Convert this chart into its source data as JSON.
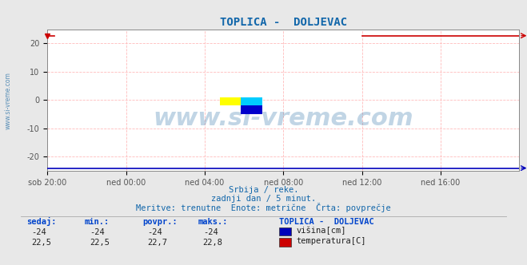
{
  "title": "TOPLICA -  DOLJEVAC",
  "title_color": "#1166aa",
  "title_fontsize": 10,
  "bg_color": "#e8e8e8",
  "plot_bg_color": "#ffffff",
  "tick_color": "#555555",
  "tick_fontsize": 7,
  "grid_color": "#ffbbbb",
  "grid_linestyle": "--",
  "grid_linewidth": 0.6,
  "xlim": [
    0,
    288
  ],
  "ylim": [
    -25,
    25
  ],
  "yticks": [
    -20,
    -10,
    0,
    10,
    20
  ],
  "xtick_labels": [
    "sob 20:00",
    "ned 00:00",
    "ned 04:00",
    "ned 08:00",
    "ned 12:00",
    "ned 16:00"
  ],
  "xtick_positions": [
    0,
    48,
    96,
    144,
    192,
    240
  ],
  "height_value": -24,
  "temp_value_start": 22.7,
  "temp_gap_end": 192,
  "height_color": "#0000bb",
  "temp_color": "#cc0000",
  "height_linewidth": 1.2,
  "temp_linewidth": 1.2,
  "watermark": "www.si-vreme.com",
  "watermark_color": "#3377aa",
  "watermark_alpha": 0.3,
  "watermark_fontsize": 22,
  "subtitle1": "Srbija / reke.",
  "subtitle2": "zadnji dan / 5 minut.",
  "subtitle3": "Meritve: trenutne  Enote: metrične  Črta: povprečje",
  "subtitle_color": "#1166aa",
  "subtitle_fontsize": 7.5,
  "table_headers": [
    "sedaj:",
    "min.:",
    "povpr.:",
    "maks.:"
  ],
  "table_header_color": "#0044cc",
  "table_header_fontsize": 7.5,
  "table_row1": [
    "-24",
    "-24",
    "-24",
    "-24"
  ],
  "table_row2": [
    "22,5",
    "22,5",
    "22,7",
    "22,8"
  ],
  "table_data_color": "#222222",
  "table_data_fontsize": 7.5,
  "legend_title": "TOPLICA -  DOLJEVAC",
  "legend_title_color": "#0044cc",
  "legend_items": [
    "višina[cm]",
    "temperatura[C]"
  ],
  "legend_colors": [
    "#0000bb",
    "#cc0000"
  ],
  "legend_fontsize": 7.5,
  "side_text": "www.si-vreme.com",
  "side_text_color": "#3377aa",
  "side_text_fontsize": 5.5,
  "spine_color": "#888888"
}
